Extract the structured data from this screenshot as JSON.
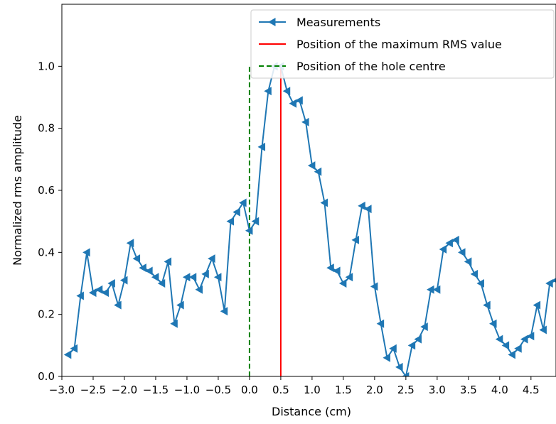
{
  "chart_data": {
    "type": "line",
    "title": "",
    "xlabel": "Distance (cm)",
    "ylabel": "Normalized rms amplitude",
    "xlim": [
      -3.0,
      4.9
    ],
    "ylim": [
      0.0,
      1.2
    ],
    "x_ticks": [
      -3.0,
      -2.5,
      -2.0,
      -1.5,
      -1.0,
      -0.5,
      0.0,
      0.5,
      1.0,
      1.5,
      2.0,
      2.5,
      3.0,
      3.5,
      4.0,
      4.5
    ],
    "x_tick_labels": [
      "−3.0",
      "−2.5",
      "−2.0",
      "−1.5",
      "−1.0",
      "−0.5",
      "0.0",
      "0.5",
      "1.0",
      "1.5",
      "2.0",
      "2.5",
      "3.0",
      "3.5",
      "4.0",
      "4.5"
    ],
    "y_ticks": [
      0.0,
      0.2,
      0.4,
      0.6,
      0.8,
      1.0
    ],
    "y_tick_labels": [
      "0.0",
      "0.2",
      "0.4",
      "0.6",
      "0.8",
      "1.0"
    ],
    "grid": false,
    "legend_position": "top-right",
    "series": [
      {
        "name": "Measurements",
        "color": "#1f77b4",
        "marker": "left-triangle",
        "x": [
          -2.9,
          -2.8,
          -2.7,
          -2.6,
          -2.5,
          -2.4,
          -2.3,
          -2.2,
          -2.1,
          -2.0,
          -1.9,
          -1.8,
          -1.7,
          -1.6,
          -1.5,
          -1.4,
          -1.3,
          -1.2,
          -1.1,
          -1.0,
          -0.9,
          -0.8,
          -0.7,
          -0.6,
          -0.5,
          -0.4,
          -0.3,
          -0.2,
          -0.1,
          0.0,
          0.1,
          0.2,
          0.3,
          0.4,
          0.5,
          0.6,
          0.7,
          0.8,
          0.9,
          1.0,
          1.1,
          1.2,
          1.3,
          1.4,
          1.5,
          1.6,
          1.7,
          1.8,
          1.9,
          2.0,
          2.1,
          2.2,
          2.3,
          2.4,
          2.5,
          2.6,
          2.7,
          2.8,
          2.9,
          3.0,
          3.1,
          3.2,
          3.3,
          3.4,
          3.5,
          3.6,
          3.7,
          3.8,
          3.9,
          4.0,
          4.1,
          4.2,
          4.3,
          4.4,
          4.5,
          4.6,
          4.7,
          4.8,
          4.9
        ],
        "values": [
          0.07,
          0.09,
          0.26,
          0.4,
          0.27,
          0.28,
          0.27,
          0.3,
          0.23,
          0.31,
          0.43,
          0.38,
          0.35,
          0.34,
          0.32,
          0.3,
          0.37,
          0.17,
          0.23,
          0.32,
          0.32,
          0.28,
          0.33,
          0.38,
          0.32,
          0.21,
          0.5,
          0.53,
          0.56,
          0.47,
          0.5,
          0.74,
          0.92,
          1.0,
          1.0,
          0.92,
          0.88,
          0.89,
          0.82,
          0.68,
          0.66,
          0.56,
          0.35,
          0.34,
          0.3,
          0.32,
          0.44,
          0.55,
          0.54,
          0.29,
          0.17,
          0.06,
          0.09,
          0.03,
          0.0,
          0.1,
          0.12,
          0.16,
          0.28,
          0.28,
          0.41,
          0.43,
          0.44,
          0.4,
          0.37,
          0.33,
          0.3,
          0.23,
          0.17,
          0.12,
          0.1,
          0.07,
          0.09,
          0.12,
          0.13,
          0.23,
          0.15,
          0.3,
          0.31
        ]
      }
    ],
    "lines": [
      {
        "name": "Position of the maximum RMS value",
        "color": "#ff0000",
        "style": "solid",
        "x": 0.5,
        "y_range": [
          0.0,
          1.0
        ]
      },
      {
        "name": "Position of the hole centre",
        "color": "#008000",
        "style": "dashed",
        "x": 0.0,
        "y_range": [
          0.0,
          1.0
        ]
      }
    ]
  }
}
